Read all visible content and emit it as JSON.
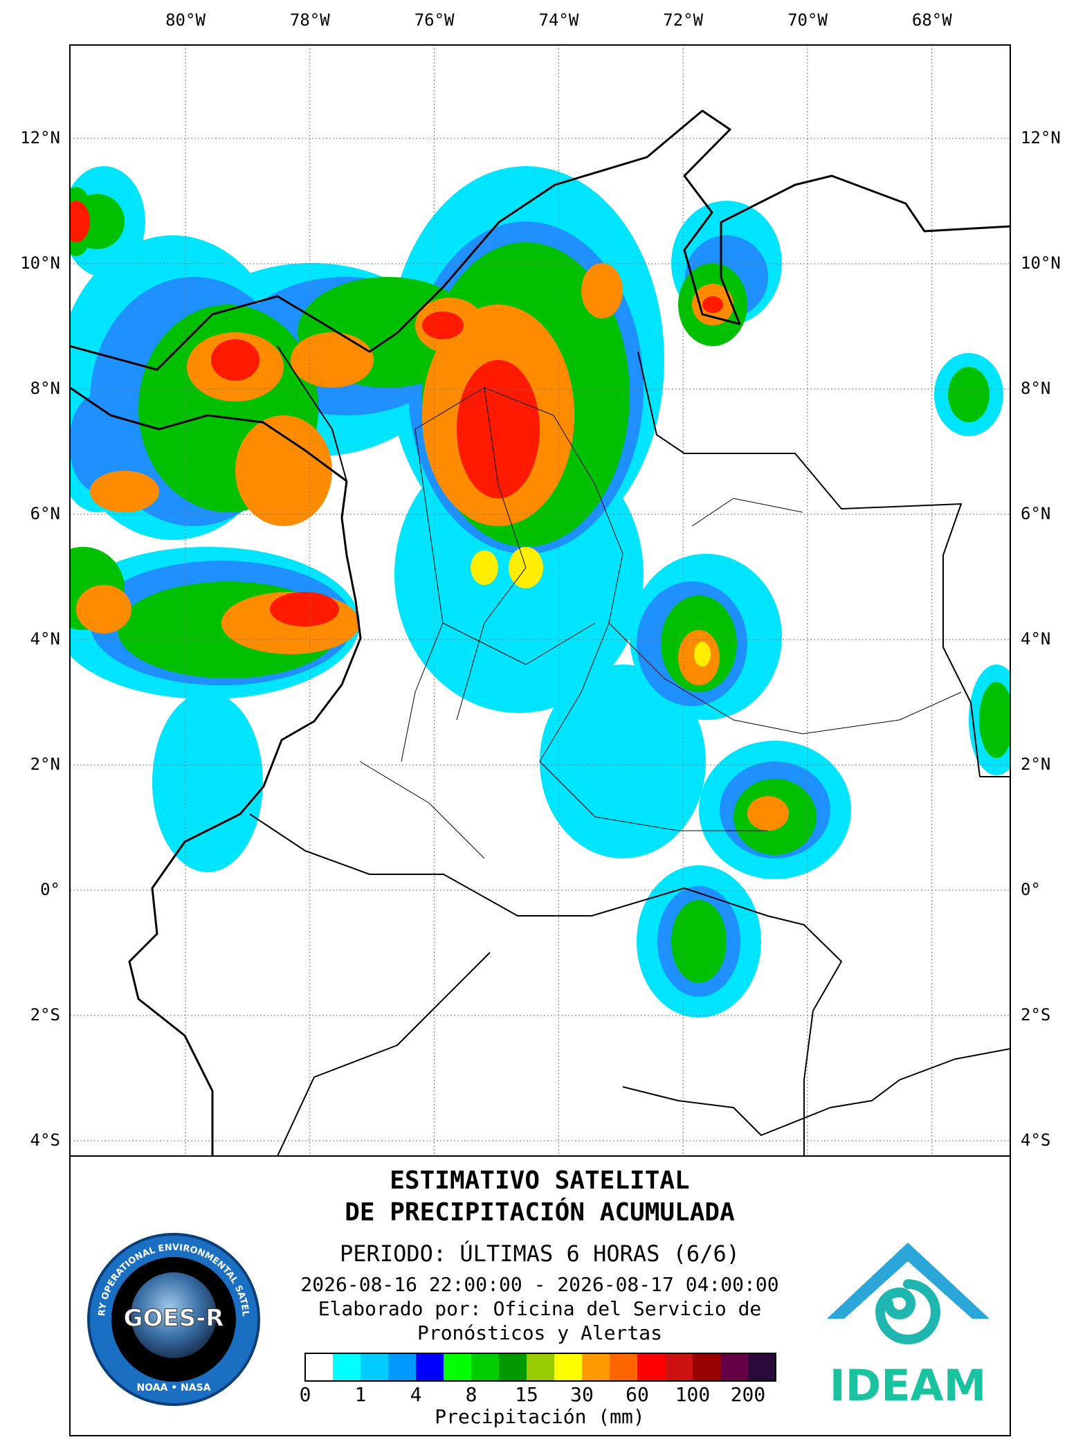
{
  "map": {
    "lon_labels": [
      "80°W",
      "78°W",
      "76°W",
      "74°W",
      "72°W",
      "70°W",
      "68°W"
    ],
    "lat_labels": [
      "12°N",
      "10°N",
      "8°N",
      "6°N",
      "4°N",
      "2°N",
      "0°",
      "2°S",
      "4°S"
    ]
  },
  "title": {
    "line1": "ESTIMATIVO SATELITAL",
    "line2": "DE PRECIPITACIÓN ACUMULADA"
  },
  "period": "PERIODO: ÚLTIMAS 6 HORAS (6/6)",
  "date_range": "2026-08-16 22:00:00 - 2026-08-17 04:00:00",
  "credit": {
    "line1": "Elaborado por: Oficina del Servicio de",
    "line2": "Pronósticos y Alertas"
  },
  "legend": {
    "labels": [
      "0",
      "1",
      "4",
      "8",
      "15",
      "30",
      "60",
      "100",
      "200"
    ],
    "title": "Precipitación (mm)"
  },
  "logos": {
    "goes": "GOES-R",
    "goes_ring": "GEOSTATIONARY OPERATIONAL ENVIRONMENTAL SATELLITE-R SERIES",
    "goes_bottom": "NOAA • NASA",
    "ideam": "IDEAM"
  }
}
